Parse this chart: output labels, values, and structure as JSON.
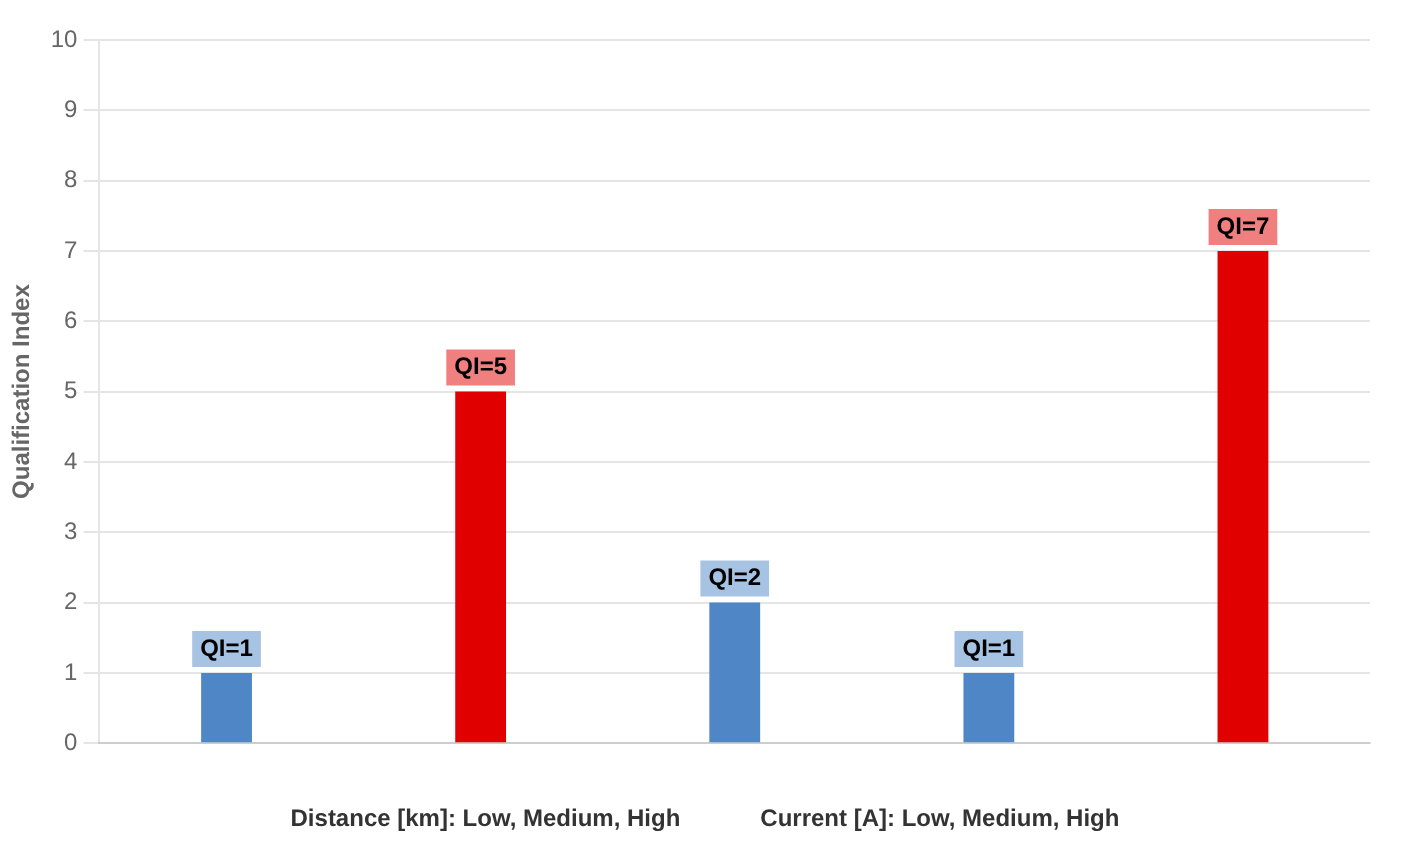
{
  "chart_data": {
    "type": "bar",
    "ylabel": "Qualification Index",
    "categories": [
      null,
      null,
      null,
      null,
      null
    ],
    "values": [
      1,
      5,
      2,
      1,
      7
    ],
    "colors": [
      "#4f86c6",
      "#e00000",
      "#4f86c6",
      "#4f86c6",
      "#e00000"
    ],
    "value_labels": [
      "QI=1",
      "QI=5",
      "QI=2",
      "QI=1",
      "QI=7"
    ],
    "ylim": [
      0,
      10
    ],
    "yticks": [
      0,
      1,
      2,
      3,
      4,
      5,
      6,
      7,
      8,
      9,
      10
    ],
    "grid": "y",
    "annotations": [
      "Distance [km]: Low, Medium, High",
      "Current [A]: Low, Medium, High"
    ]
  }
}
